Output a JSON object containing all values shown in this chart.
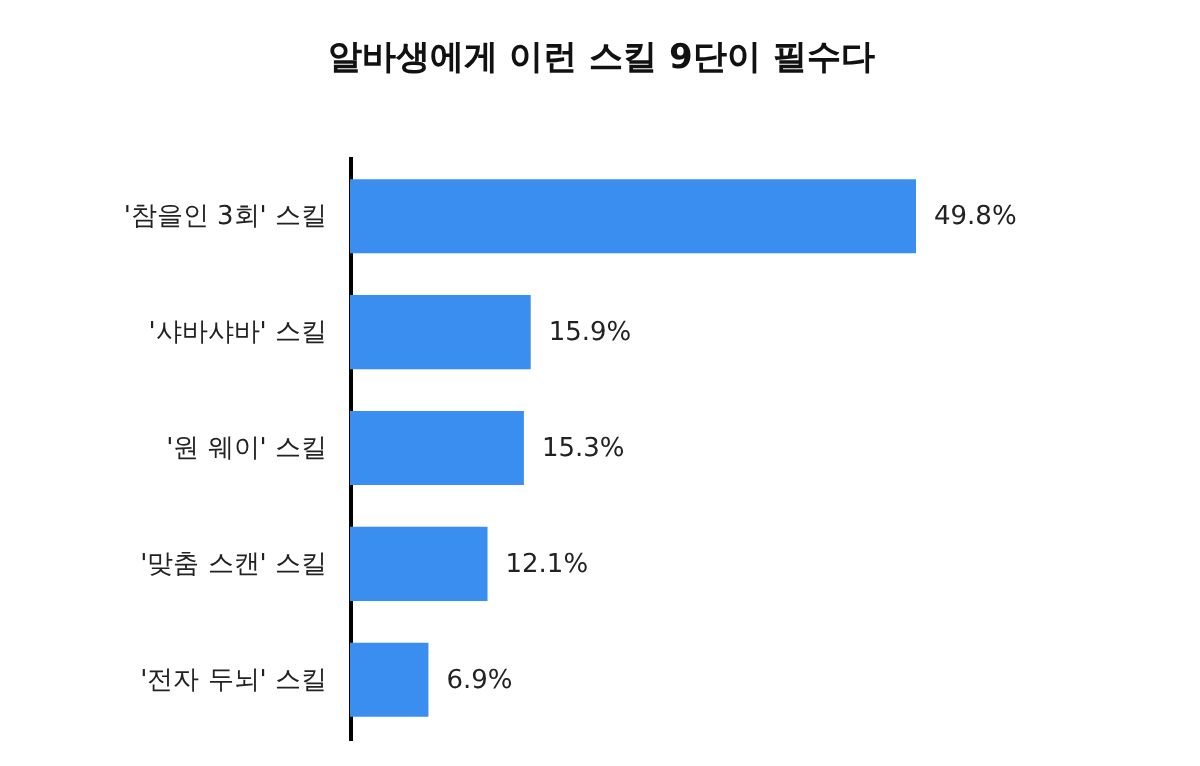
{
  "chart_data": {
    "type": "bar",
    "orientation": "horizontal",
    "title": "알바생에게 이런 스킬 9단이 필수다",
    "categories": [
      "'참을인 3회' 스킬",
      "'샤바샤바' 스킬",
      "'원 웨이' 스킬",
      "'맞춤 스캔' 스킬",
      "'전자 두뇌' 스킬"
    ],
    "values": [
      49.8,
      15.9,
      15.3,
      12.1,
      6.9
    ],
    "value_labels": [
      "49.8%",
      "15.9%",
      "15.3%",
      "12.1%",
      "6.9%"
    ],
    "color": "#3a8ef0"
  }
}
